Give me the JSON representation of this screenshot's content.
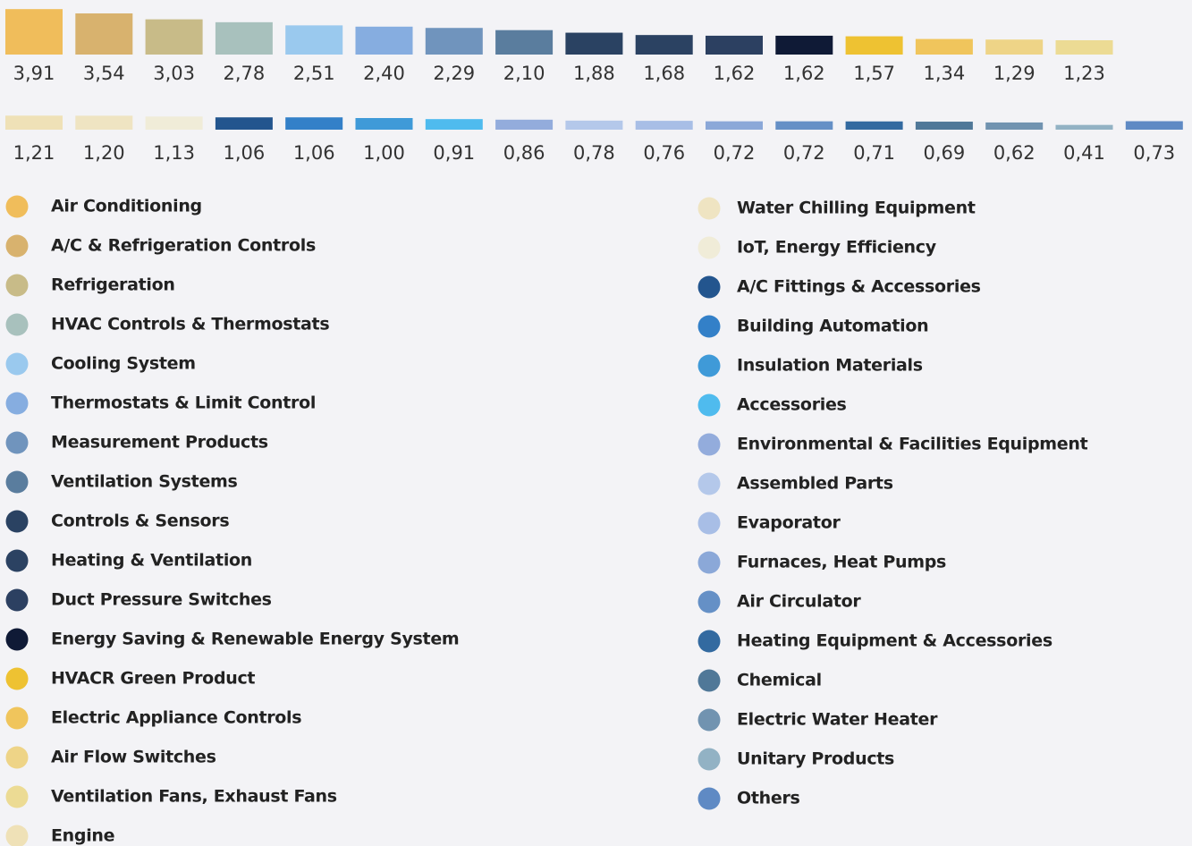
{
  "chart_data": {
    "type": "bar",
    "categories": [
      "Air Conditioning",
      "A/C & Refrigeration Controls",
      "Refrigeration",
      "HVAC Controls & Thermostats",
      "Cooling System",
      "Thermostats & Limit Control",
      "Measurement Products",
      "Ventilation Systems",
      "Controls & Sensors",
      "Heating & Ventilation",
      "Duct Pressure Switches",
      "Energy Saving & Renewable Energy System",
      "HVACR Green Product",
      "Electric Appliance Controls",
      "Air Flow Switches",
      "Ventilation Fans, Exhaust Fans",
      "Engine",
      "Water Chilling Equipment",
      "IoT, Energy Efficiency",
      "A/C Fittings & Accessories",
      "Building Automation",
      "Insulation Materials",
      "Accessories",
      "Environmental & Facilities Equipment",
      "Assembled Parts",
      "Evaporator",
      "Furnaces, Heat Pumps",
      "Air Circulator",
      "Heating Equipment & Accessories",
      "Chemical",
      "Electric Water Heater",
      "Unitary Products",
      "Others"
    ],
    "values": [
      3.91,
      3.54,
      3.03,
      2.78,
      2.51,
      2.4,
      2.29,
      2.1,
      1.88,
      1.68,
      1.62,
      1.62,
      1.57,
      1.34,
      1.29,
      1.23,
      1.21,
      1.2,
      1.13,
      1.06,
      1.06,
      1.0,
      0.91,
      0.86,
      0.78,
      0.76,
      0.72,
      0.72,
      0.71,
      0.69,
      0.62,
      0.41,
      0.73
    ],
    "value_labels": [
      "3,91",
      "3,54",
      "3,03",
      "2,78",
      "2,51",
      "2,40",
      "2,29",
      "2,10",
      "1,88",
      "1,68",
      "1,62",
      "1,62",
      "1,57",
      "1,34",
      "1,29",
      "1,23",
      "1,21",
      "1,20",
      "1,13",
      "1,06",
      "1,06",
      "1,00",
      "0,91",
      "0,86",
      "0,78",
      "0,76",
      "0,72",
      "0,72",
      "0,71",
      "0,69",
      "0,62",
      "0,41",
      "0,73"
    ],
    "colors": [
      "#f0bd5b",
      "#d8b26e",
      "#c8bb88",
      "#a8c1bd",
      "#9ac9ee",
      "#86ade0",
      "#7094bd",
      "#5a7d9e",
      "#2a4262",
      "#2b4262",
      "#2c4061",
      "#0f1a36",
      "#eec232",
      "#f0c55c",
      "#eed487",
      "#ecdb94",
      "#efe1b7",
      "#efe4c2",
      "#f0ecd8",
      "#23558e",
      "#3380c8",
      "#3f9ad8",
      "#4fbbee",
      "#93acdc",
      "#b4c8ea",
      "#a8bee6",
      "#8ba8d8",
      "#6590c6",
      "#336aa0",
      "#507898",
      "#7193b0",
      "#92b2c4",
      "#5f8ac4"
    ]
  }
}
